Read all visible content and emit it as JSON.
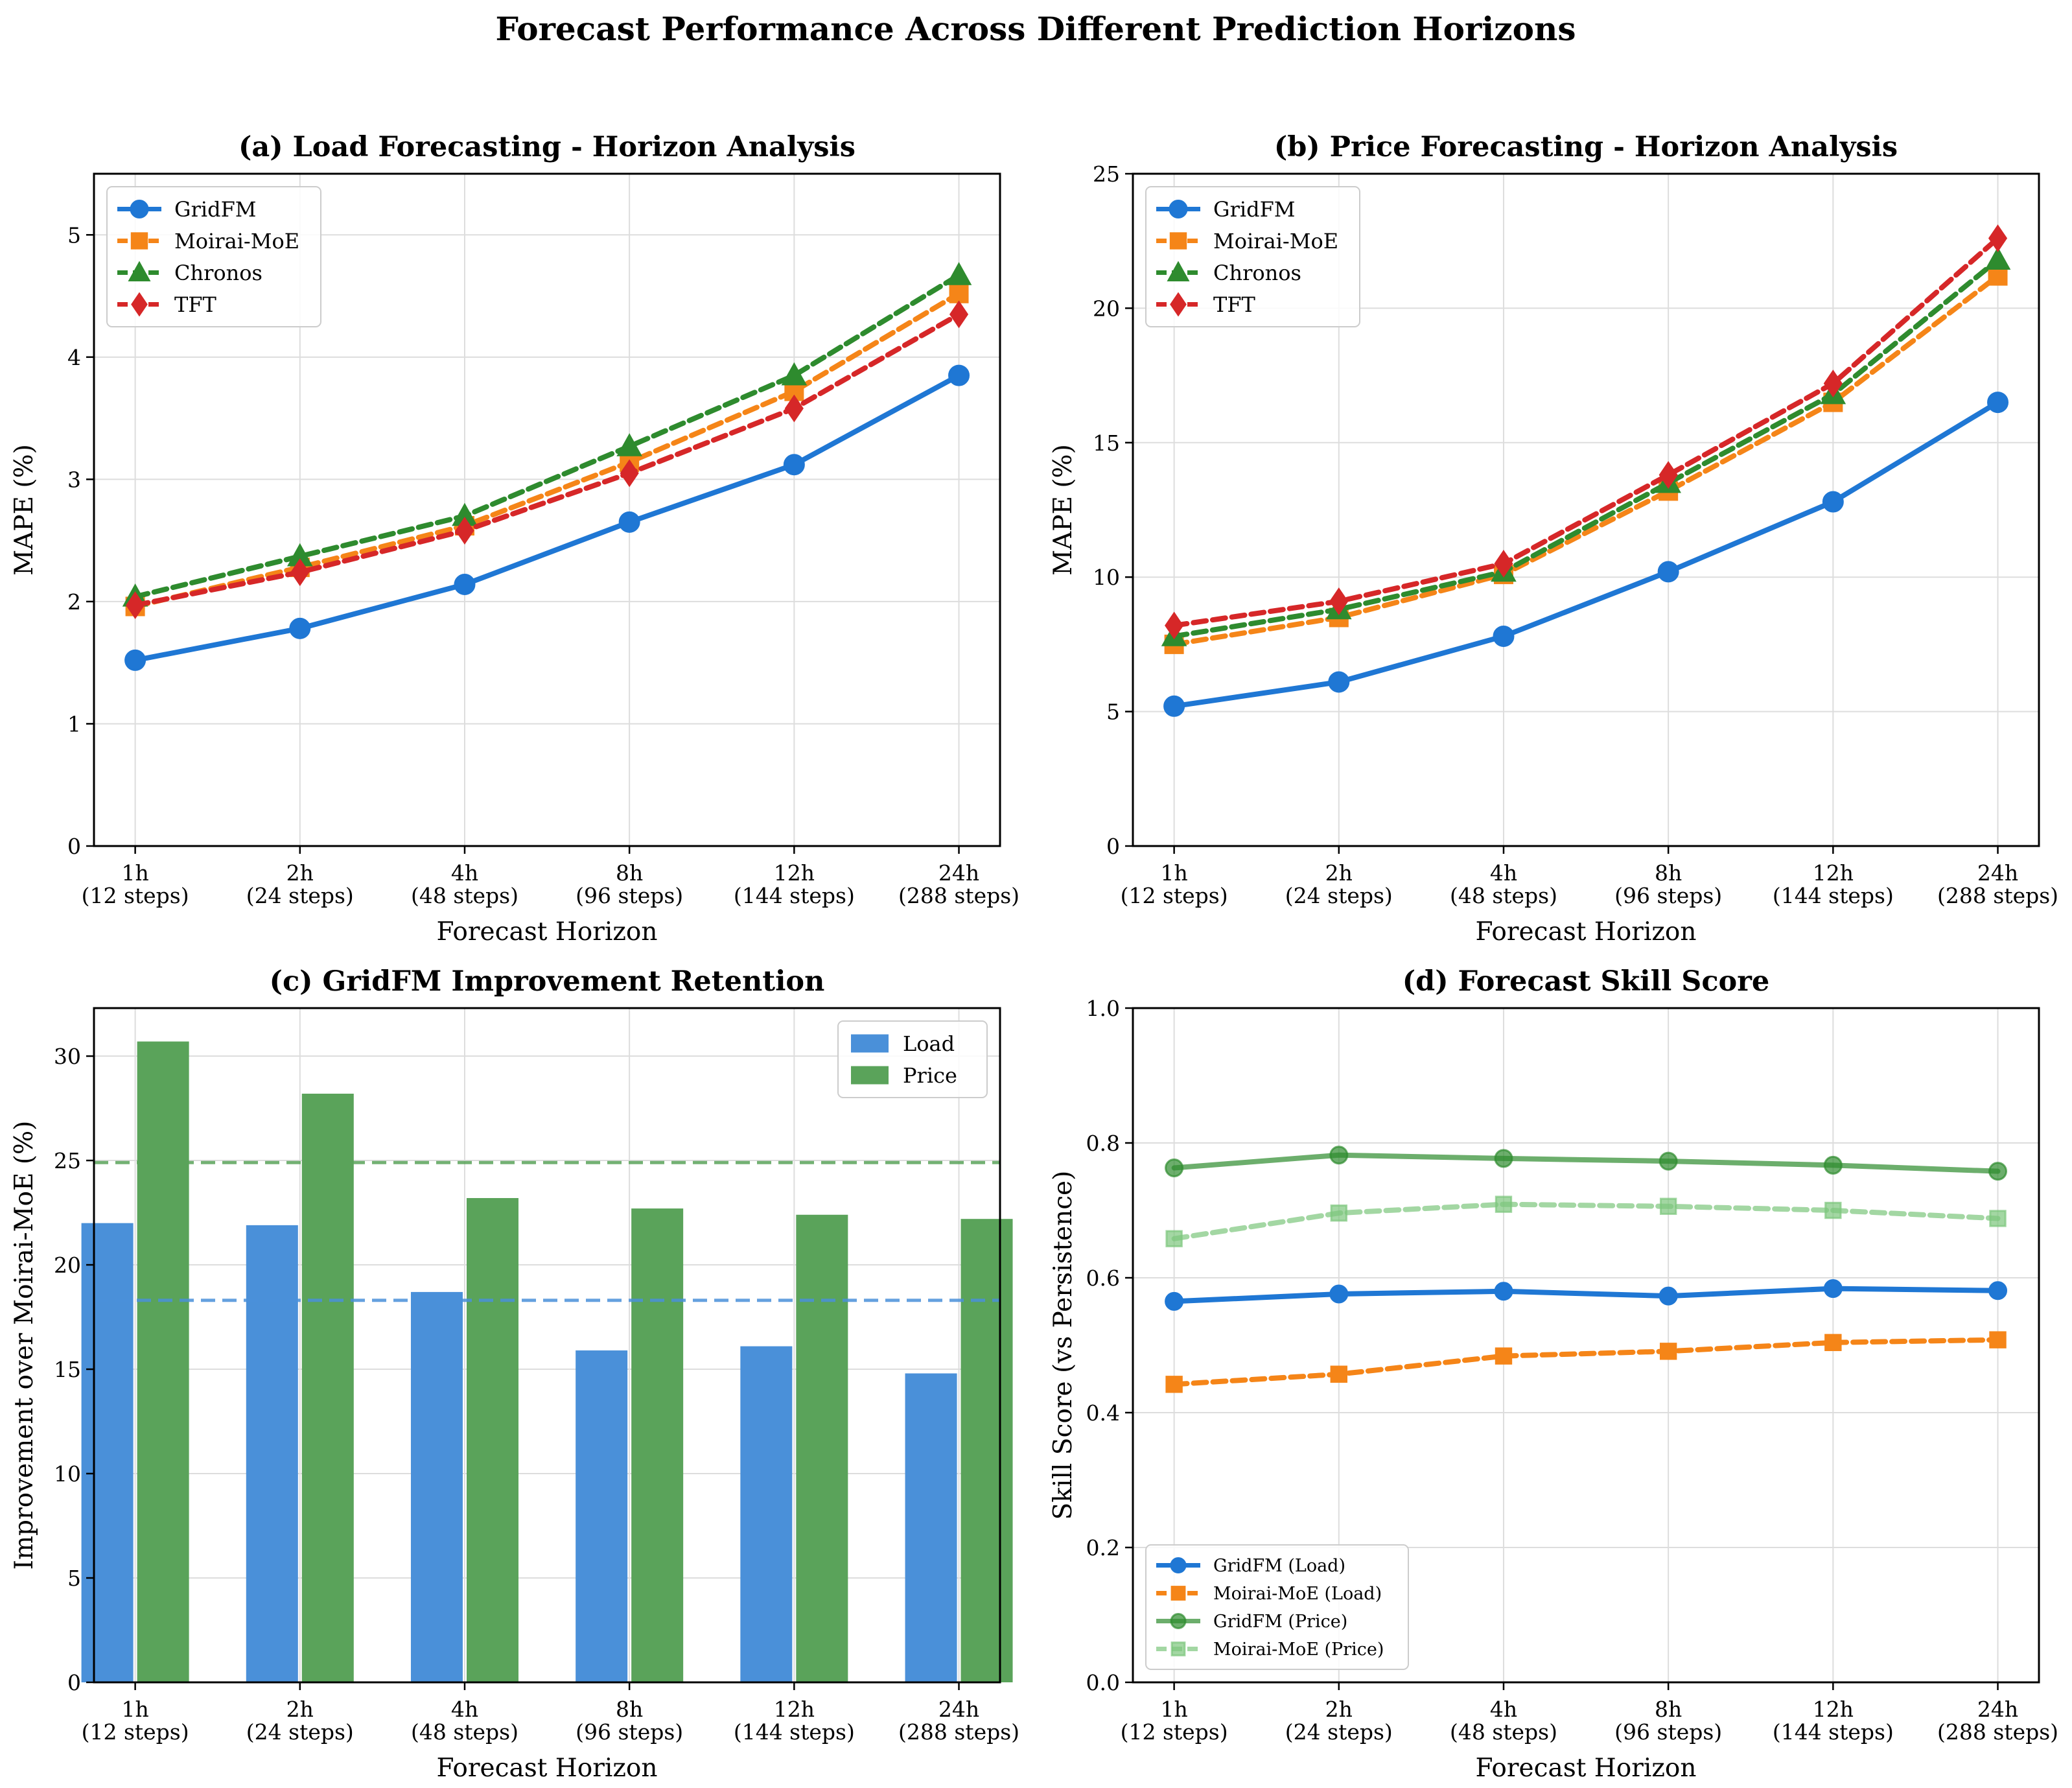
{
  "figure": {
    "title": "Forecast Performance Across Different Prediction Horizons"
  },
  "chart_data": [
    {
      "type": "line",
      "title": "(a) Load Forecasting - Horizon Analysis",
      "xlabel": "Forecast Horizon",
      "ylabel": "MAPE (%)",
      "categories": [
        "1h\n(12 steps)",
        "2h\n(24 steps)",
        "4h\n(48 steps)",
        "8h\n(96 steps)",
        "12h\n(144 steps)",
        "24h\n(288 steps)"
      ],
      "ylim": [
        0,
        5.5
      ],
      "yticks": [
        0,
        1,
        2,
        3,
        4,
        5
      ],
      "legend": "top-left",
      "grid": true,
      "series": [
        {
          "name": "GridFM",
          "values": [
            1.52,
            1.78,
            2.14,
            2.65,
            3.12,
            3.85
          ],
          "color": "#1f77d4",
          "marker": "circle",
          "dash": false
        },
        {
          "name": "Moirai-MoE",
          "values": [
            1.96,
            2.28,
            2.62,
            3.14,
            3.72,
            4.52
          ],
          "color": "#f58518",
          "marker": "square",
          "dash": true
        },
        {
          "name": "Chronos",
          "values": [
            2.04,
            2.37,
            2.7,
            3.27,
            3.85,
            4.67
          ],
          "color": "#2e8b2e",
          "marker": "triangle",
          "dash": true
        },
        {
          "name": "TFT",
          "values": [
            1.97,
            2.24,
            2.58,
            3.05,
            3.58,
            4.35
          ],
          "color": "#d62728",
          "marker": "diamond",
          "dash": true
        }
      ]
    },
    {
      "type": "line",
      "title": "(b) Price Forecasting - Horizon Analysis",
      "xlabel": "Forecast Horizon",
      "ylabel": "MAPE (%)",
      "categories": [
        "1h\n(12 steps)",
        "2h\n(24 steps)",
        "4h\n(48 steps)",
        "8h\n(96 steps)",
        "12h\n(144 steps)",
        "24h\n(288 steps)"
      ],
      "ylim": [
        0,
        25
      ],
      "yticks": [
        0,
        5,
        10,
        15,
        20,
        25
      ],
      "legend": "top-left",
      "grid": true,
      "series": [
        {
          "name": "GridFM",
          "values": [
            5.2,
            6.1,
            7.8,
            10.2,
            12.8,
            16.5
          ],
          "color": "#1f77d4",
          "marker": "circle",
          "dash": false
        },
        {
          "name": "Moirai-MoE",
          "values": [
            7.5,
            8.5,
            10.1,
            13.2,
            16.5,
            21.2
          ],
          "color": "#f58518",
          "marker": "square",
          "dash": true
        },
        {
          "name": "Chronos",
          "values": [
            7.8,
            8.8,
            10.2,
            13.5,
            16.8,
            21.8
          ],
          "color": "#2e8b2e",
          "marker": "triangle",
          "dash": true
        },
        {
          "name": "TFT",
          "values": [
            8.2,
            9.1,
            10.5,
            13.8,
            17.2,
            22.6
          ],
          "color": "#d62728",
          "marker": "diamond",
          "dash": true
        }
      ]
    },
    {
      "type": "bar",
      "title": "(c) GridFM Improvement Retention",
      "xlabel": "Forecast Horizon",
      "ylabel": "Improvement over Moirai-MoE (%)",
      "categories": [
        "1h\n(12 steps)",
        "2h\n(24 steps)",
        "4h\n(48 steps)",
        "8h\n(96 steps)",
        "12h\n(144 steps)",
        "24h\n(288 steps)"
      ],
      "ylim": [
        0,
        32.3
      ],
      "yticks": [
        0,
        5,
        10,
        15,
        20,
        25,
        30
      ],
      "legend": "top-right",
      "grid": true,
      "series": [
        {
          "name": "Load",
          "values": [
            22.0,
            21.9,
            18.7,
            15.9,
            16.1,
            14.8
          ],
          "color": "#4a90d9",
          "mean": 18.3
        },
        {
          "name": "Price",
          "values": [
            30.7,
            28.2,
            23.2,
            22.7,
            22.4,
            22.2
          ],
          "color": "#5aa35a",
          "mean": 24.9
        }
      ]
    },
    {
      "type": "line",
      "title": "(d) Forecast Skill Score",
      "xlabel": "Forecast Horizon",
      "ylabel": "Skill Score (vs Persistence)",
      "categories": [
        "1h\n(12 steps)",
        "2h\n(24 steps)",
        "4h\n(48 steps)",
        "8h\n(96 steps)",
        "12h\n(144 steps)",
        "24h\n(288 steps)"
      ],
      "ylim": [
        0,
        1.0
      ],
      "yticks": [
        "0.0",
        "0.2",
        "0.4",
        "0.6",
        "0.8",
        "1.0"
      ],
      "legend": "bottom-left",
      "grid": true,
      "series": [
        {
          "name": "GridFM (Load)",
          "values": [
            0.565,
            0.576,
            0.58,
            0.573,
            0.584,
            0.581
          ],
          "color": "#1f77d4",
          "marker": "circle",
          "dash": false,
          "opacity": 1
        },
        {
          "name": "Moirai-MoE (Load)",
          "values": [
            0.442,
            0.457,
            0.484,
            0.491,
            0.504,
            0.508
          ],
          "color": "#f58518",
          "marker": "square",
          "dash": true,
          "opacity": 1
        },
        {
          "name": "GridFM (Price)",
          "values": [
            0.763,
            0.782,
            0.777,
            0.773,
            0.767,
            0.758
          ],
          "color": "#2e8b2e",
          "marker": "circle",
          "dash": false,
          "opacity": 0.7
        },
        {
          "name": "Moirai-MoE (Price)",
          "values": [
            0.658,
            0.696,
            0.709,
            0.706,
            0.7,
            0.688
          ],
          "color": "#7cc67c",
          "marker": "square",
          "dash": true,
          "opacity": 0.7
        }
      ]
    }
  ]
}
